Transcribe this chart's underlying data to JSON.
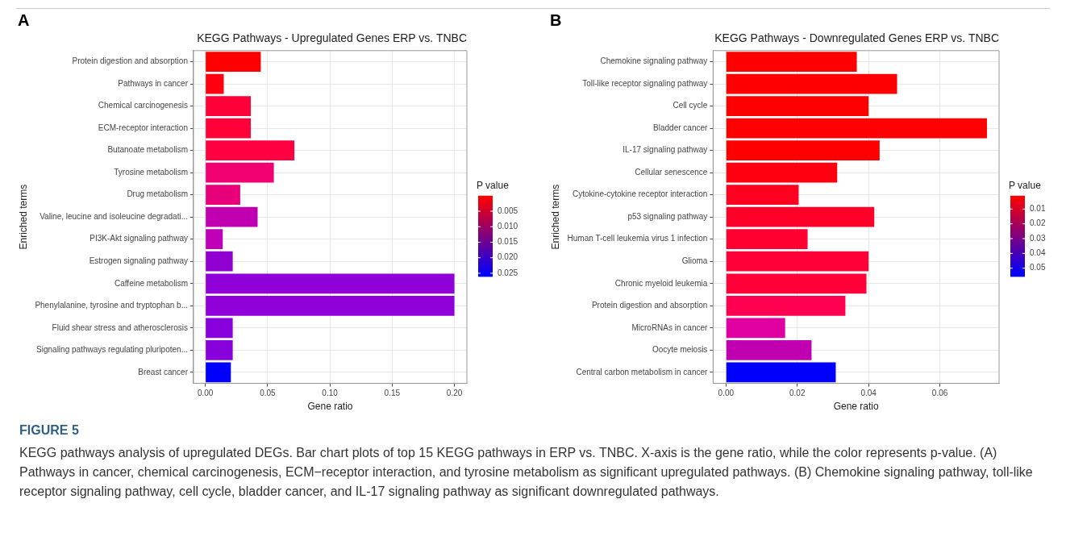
{
  "chart_data": [
    {
      "type": "bar",
      "orientation": "horizontal",
      "title": "KEGG Pathways - Upregulated Genes ERP vs. TNBC",
      "xlabel": "Gene ratio",
      "ylabel": "Enriched terms",
      "clabel": "P value",
      "categories": [
        "Protein digestion and absorption",
        "Pathways in cancer",
        "Chemical carcinogenesis",
        "ECM-receptor interaction",
        "Butanoate metabolism",
        "Tyrosine metabolism",
        "Drug metabolism",
        "Valine, leucine and isoleucine degradati...",
        "PI3K-Akt signaling pathway",
        "Estrogen signaling pathway",
        "Caffeine metabolism",
        "Phenylalanine, tyrosine and tryptophan b...",
        "Fluid shear stress and atherosclerosis",
        "Signaling pathways regulating pluripoten...",
        "Breast cancer"
      ],
      "values": [
        0.0445,
        0.0148,
        0.0365,
        0.0365,
        0.0715,
        0.055,
        0.028,
        0.042,
        0.014,
        0.022,
        0.2,
        0.2,
        0.022,
        0.022,
        0.0205
      ],
      "colors": [
        "#ff0000",
        "#ff0010",
        "#ff0038",
        "#ff0038",
        "#ff0040",
        "#f00070",
        "#e8007a",
        "#c000b0",
        "#c000b8",
        "#9000d0",
        "#9000d8",
        "#9000d8",
        "#8800dc",
        "#8800dc",
        "#0000ff"
      ],
      "xlim": [
        -0.0095,
        0.21
      ],
      "xticks": [
        {
          "value": 0,
          "label": "0.00"
        },
        {
          "value": 0.05,
          "label": "0.05"
        },
        {
          "value": 0.1,
          "label": "0.10"
        },
        {
          "value": 0.15,
          "label": "0.15"
        },
        {
          "value": 0.2,
          "label": "0.20"
        }
      ],
      "clim": [
        0,
        0.026
      ],
      "cticks": [
        {
          "value": 0.005,
          "label": "0.005"
        },
        {
          "value": 0.01,
          "label": "0.010"
        },
        {
          "value": 0.015,
          "label": "0.015"
        },
        {
          "value": 0.02,
          "label": "0.020"
        },
        {
          "value": 0.025,
          "label": "0.025"
        }
      ],
      "grid": true,
      "annotations": [
        "A",
        "FIGURE 5",
        "KEGG pathways analysis of upregulated DEGs. Bar chart plots of top 15 KEGG pathways in ERP vs. TNBC. X-axis is the gene ratio, while the color represents p-value. (A) Pathways in cancer, chemical carcinogenesis, ECM−receptor interaction, and tyrosine metabolism as significant upregulated pathways. (B) Chemokine signaling pathway, toll-like receptor signaling pathway, cell cycle, bladder cancer, and IL-17 signaling pathway as significant downregulated pathways."
      ]
    },
    {
      "type": "bar",
      "orientation": "horizontal",
      "title": "KEGG Pathways - Downregulated Genes ERP vs. TNBC",
      "xlabel": "Gene ratio",
      "ylabel": "Enriched terms",
      "clabel": "P value",
      "categories": [
        "Chemokine signaling pathway",
        "Toll-like receptor signaling pathway",
        "Cell cycle",
        "Bladder cancer",
        "IL-17 signaling pathway",
        "Cellular senescence",
        "Cytokine-cytokine receptor interaction",
        "p53 signaling pathway",
        "Human T-cell leukemia virus 1 infection",
        "Glioma",
        "Chronic myeloid leukemia",
        "Protein digestion and absorption",
        "MicroRNAs in cancer",
        "Oocyte meiosis",
        "Central carbon metabolism in cancer"
      ],
      "values": [
        0.0367,
        0.048,
        0.04,
        0.0732,
        0.0431,
        0.0312,
        0.0204,
        0.0416,
        0.0229,
        0.04,
        0.0394,
        0.0335,
        0.0166,
        0.024,
        0.0308
      ],
      "colors": [
        "#ff0000",
        "#ff0000",
        "#ff0000",
        "#ff0000",
        "#ff0000",
        "#ff0010",
        "#ff0020",
        "#ff0028",
        "#ff0030",
        "#ff0038",
        "#ff0038",
        "#ff0050",
        "#e000a0",
        "#c000b0",
        "#0000ff"
      ],
      "xlim": [
        -0.0036,
        0.0766
      ],
      "xticks": [
        {
          "value": 0,
          "label": "0.00"
        },
        {
          "value": 0.02,
          "label": "0.02"
        },
        {
          "value": 0.04,
          "label": "0.04"
        },
        {
          "value": 0.06,
          "label": "0.06"
        }
      ],
      "clim": [
        0.001,
        0.0555
      ],
      "cticks": [
        0.01,
        0.02,
        0.03,
        0.04,
        0.05
      ],
      "grid": true,
      "annotations": [
        "B"
      ]
    }
  ]
}
